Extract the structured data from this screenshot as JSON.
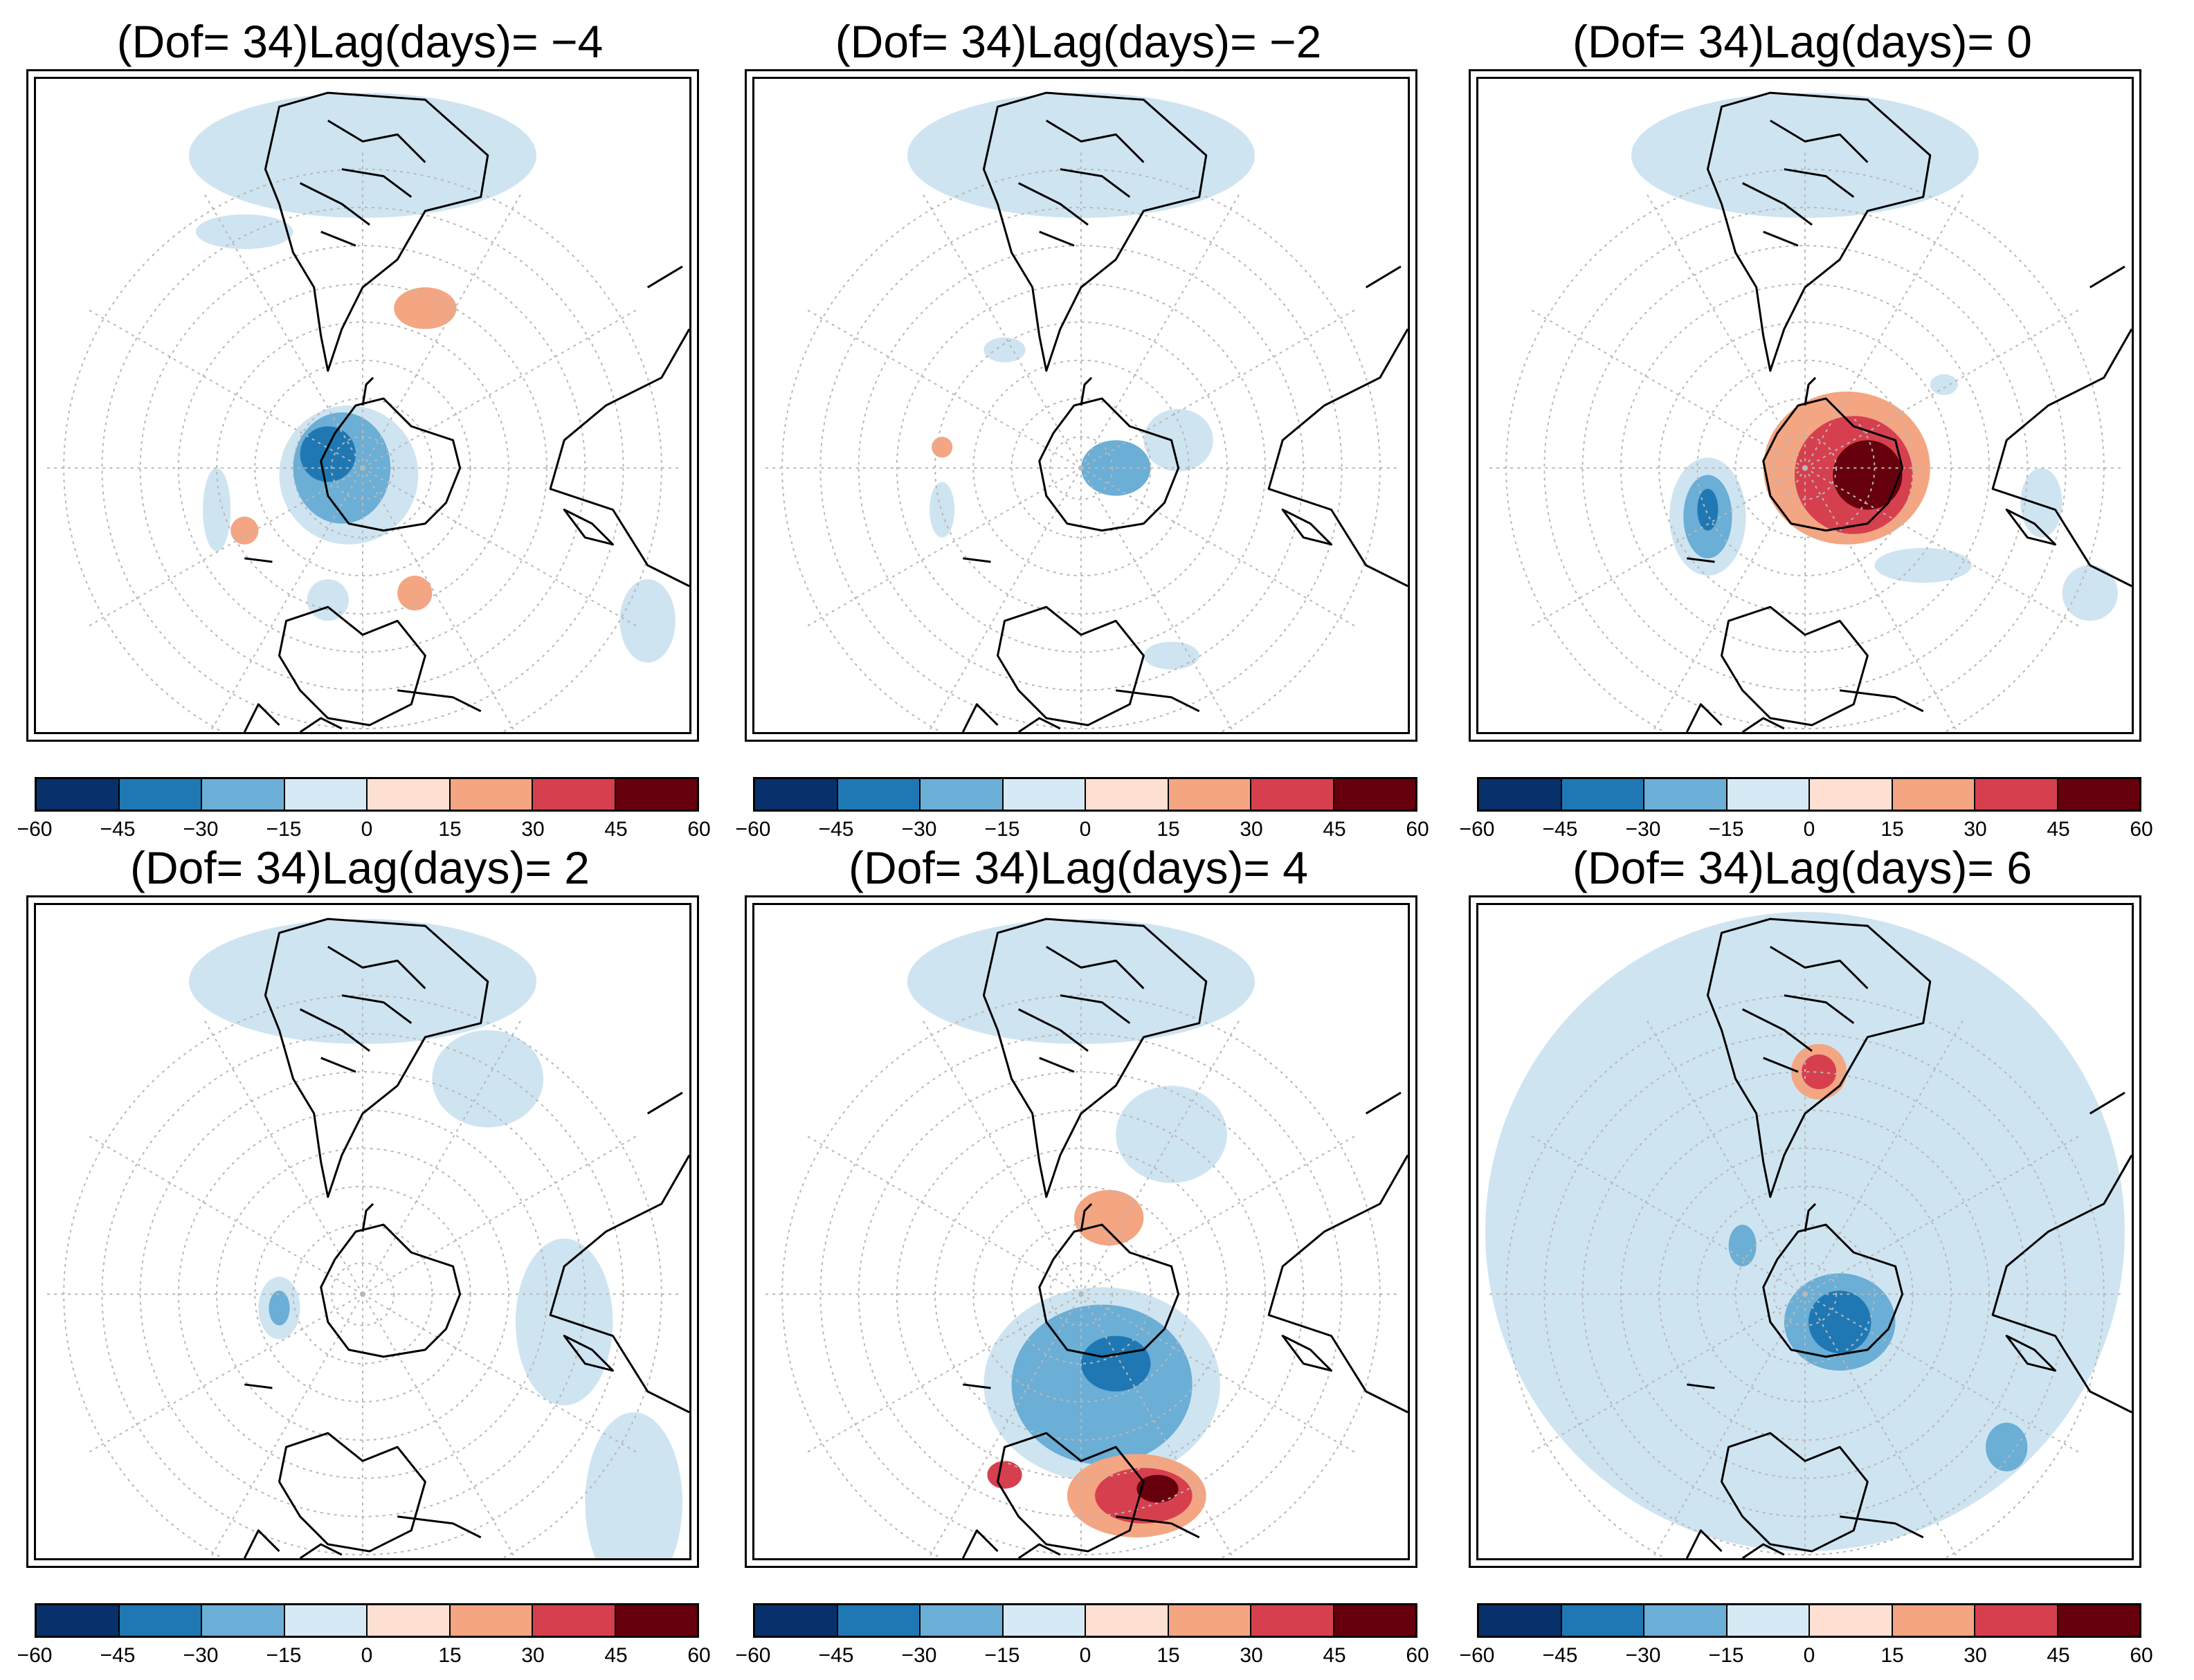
{
  "figure": {
    "panels": [
      {
        "title": "(Dof= 34)Lag(days)= −4"
      },
      {
        "title": "(Dof= 34)Lag(days)= −2"
      },
      {
        "title": "(Dof= 34)Lag(days)= 0"
      },
      {
        "title": "(Dof= 34)Lag(days)= 2"
      },
      {
        "title": "(Dof= 34)Lag(days)= 4"
      },
      {
        "title": "(Dof= 34)Lag(days)= 6"
      }
    ],
    "colorbar": {
      "ticks": [
        "−60",
        "−45",
        "−30",
        "−15",
        "0",
        "15",
        "30",
        "45",
        "60"
      ],
      "colors": [
        "#08306b",
        "#1f78b4",
        "#6baed6",
        "#d6eaf5",
        "#fde0d2",
        "#f4a582",
        "#d6404e",
        "#67000d"
      ]
    },
    "colors": {
      "light_blue": "#cfe4f1",
      "mid_blue": "#6baed6",
      "dark_blue": "#1f78b4",
      "light_red": "#f4a582",
      "mid_red": "#d6404e",
      "dark_red": "#67000d",
      "grid": "#b8b8b8",
      "coast": "#000000"
    }
  }
}
